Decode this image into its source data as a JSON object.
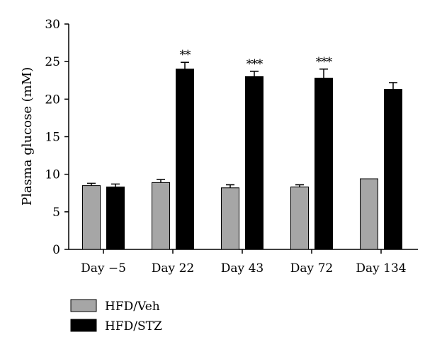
{
  "chart_data": {
    "type": "bar",
    "ylabel": "Plasma glucose (mM)",
    "xlabel": "",
    "ylim": [
      0,
      30
    ],
    "yticks": [
      "0",
      "5",
      "10",
      "15",
      "20",
      "25",
      "30"
    ],
    "grid": false,
    "legend_position": "bottom-left",
    "categories": [
      "Day −5",
      "Day 22",
      "Day 43",
      "Day 72",
      "Day 134"
    ],
    "series": [
      {
        "name": "HFD/Veh",
        "color": "#a6a6a6",
        "values": [
          8.5,
          8.9,
          8.2,
          8.3,
          9.4
        ],
        "errors": [
          0.3,
          0.4,
          0.4,
          0.3,
          0.0
        ]
      },
      {
        "name": "HFD/STZ",
        "color": "#000000",
        "values": [
          8.3,
          24.0,
          23.0,
          22.8,
          21.3
        ],
        "errors": [
          0.4,
          0.9,
          0.7,
          1.2,
          0.9
        ]
      }
    ],
    "annotations": [
      "",
      "**",
      "***",
      "***",
      ""
    ]
  }
}
